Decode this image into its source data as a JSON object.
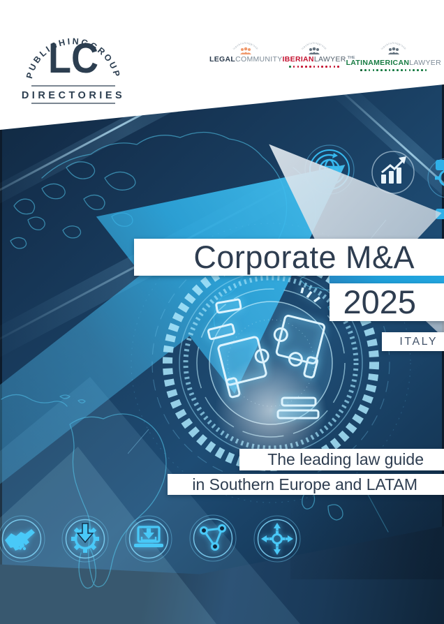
{
  "publisher_logo": {
    "arc_text": "PUBLISHINGGROUP",
    "initials": "LC",
    "sub_text": "DIRECTORIES"
  },
  "brand_logos": {
    "legalcommunity": {
      "arc_text": "lcpublishinggroup",
      "bold": "LEGAL",
      "light": "COMMUNITY"
    },
    "iberianlawyer": {
      "arc_text": "lcpublishinggroup",
      "bold": "IBERIAN",
      "light": "LAWYER"
    },
    "latinamericanlawyer": {
      "arc_text": "lcpublishinggroup",
      "the": "THE",
      "bold": "LATINAMERICAN",
      "light": "LAWYER"
    }
  },
  "cover": {
    "title": "Corporate M&A",
    "year": "2025",
    "country": "ITALY",
    "tagline_line1": "The leading law guide",
    "tagline_line2": "in Southern Europe and LATAM"
  },
  "decorative_icons": {
    "top": [
      "globe-sync-icon",
      "growth-chart-icon",
      "gear-icon"
    ],
    "bottom": [
      "handshake-icon",
      "gear-download-icon",
      "laptop-download-icon",
      "network-triangle-icon",
      "expand-arrows-icon"
    ]
  },
  "dots": {
    "iberian": {
      "count": 13,
      "lead_count": 1,
      "lead_color": "#157a41",
      "color": "#c41230"
    },
    "latam": {
      "count": 17,
      "lead_count": 1,
      "lead_color": "#0e5c2f",
      "color": "#157a41"
    }
  },
  "colors": {
    "accent_cyan": "#45c2f1",
    "navy_text": "#2e3d50",
    "title_strip": "#1f9fd9",
    "iberian_red": "#c41230",
    "latam_green": "#157a41",
    "legal_orange": "#f09a6e",
    "background_navy": "#14304e"
  }
}
